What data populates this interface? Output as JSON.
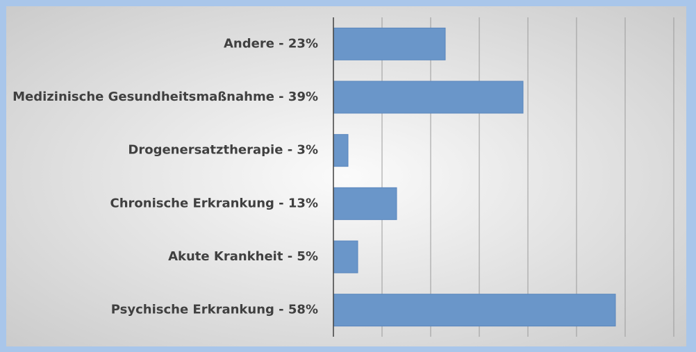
{
  "chart_data": {
    "type": "hbar",
    "categories": [
      "Andere - 23%",
      "Medizinische Gesundheitsmaßnahme - 39%",
      "Drogenersatztherapie - 3%",
      "Chronische Erkrankung - 13%",
      "Akute Krankheit - 5%",
      "Psychische Erkrankung - 58%"
    ],
    "values": [
      23,
      39,
      3,
      13,
      5,
      58
    ],
    "color": "#6a96c9",
    "xlim": [
      0,
      70
    ],
    "xticks": [
      0,
      10,
      20,
      30,
      40,
      50,
      60,
      70
    ],
    "grid": true
  }
}
